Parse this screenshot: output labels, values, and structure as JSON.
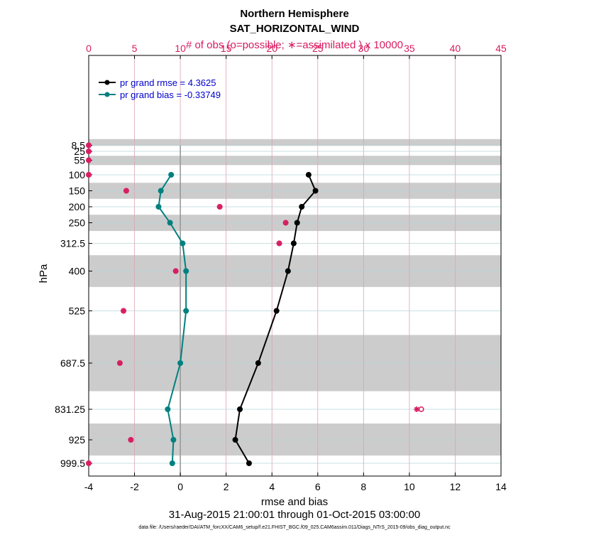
{
  "chart_data": {
    "type": "line",
    "title": "Northern Hemisphere",
    "subtitle": "SAT_HORIZONTAL_WIND",
    "top_axis_label": "# of obs (o=possible; ∗=assimilated ) x 10000",
    "xlabel": "rmse and bias",
    "ylabel": "hPa",
    "date_range": "31-Aug-2015 21:00:01 through 01-Oct-2015 03:00:00",
    "footnote": "data file: /Users/raeder/DAI/ATM_forcXX/CAM6_setup/f.e21.FHIST_BGC.f09_025.CAM6assim.011/Diags_NTrS_2015-09/obs_diag_output.nc",
    "xlim": [
      -4,
      14
    ],
    "xticks": [
      -4,
      -2,
      0,
      2,
      4,
      6,
      8,
      10,
      12,
      14
    ],
    "top_xlim": [
      0,
      45
    ],
    "top_xticks": [
      0,
      5,
      10,
      15,
      20,
      25,
      30,
      35,
      40,
      45
    ],
    "y_levels": [
      8.5,
      25,
      55,
      100,
      150,
      200,
      250,
      312.5,
      400,
      525,
      687.5,
      831.25,
      925,
      999.5
    ],
    "y_labels": [
      "8.5",
      "25",
      "55",
      "100",
      "150",
      "200",
      "250",
      "312.5",
      "400",
      "525",
      "687.5",
      "831.25",
      "925",
      "999.5"
    ],
    "shaded_bands": [
      [
        5,
        10
      ],
      [
        40,
        70
      ],
      [
        125,
        175
      ],
      [
        225,
        275
      ],
      [
        350,
        450
      ],
      [
        600,
        775
      ],
      [
        875,
        975
      ]
    ],
    "grid": true,
    "legend_position": "top-left",
    "series": [
      {
        "name": "pr grand rmse = 4.3625",
        "color": "#000000",
        "levels": [
          100,
          150,
          200,
          250,
          312.5,
          400,
          525,
          687.5,
          831.25,
          925,
          999.5
        ],
        "values": [
          5.6,
          5.9,
          5.3,
          5.1,
          4.95,
          4.7,
          4.2,
          3.4,
          2.6,
          2.4,
          3.0
        ]
      },
      {
        "name": "pr grand bias = -0.33749",
        "color": "#008080",
        "levels": [
          100,
          150,
          200,
          250,
          312.5,
          400,
          525,
          687.5,
          831.25,
          925,
          999.5
        ],
        "values": [
          -0.4,
          -0.85,
          -0.95,
          -0.45,
          0.1,
          0.25,
          0.25,
          0.0,
          -0.55,
          -0.3,
          -0.35
        ]
      }
    ],
    "obs_counts": {
      "color": "#d81b60",
      "levels": [
        8.5,
        25,
        55,
        100,
        150,
        200,
        250,
        312.5,
        400,
        525,
        687.5,
        831.25,
        925,
        999.5
      ],
      "possible": [
        0,
        0,
        0,
        0,
        4.1,
        14.3,
        21.5,
        20.8,
        9.5,
        3.8,
        3.4,
        36.3,
        4.6,
        0
      ],
      "assimilated": [
        0,
        0,
        0,
        0,
        4.1,
        14.3,
        21.5,
        20.8,
        9.5,
        3.8,
        3.4,
        35.8,
        4.6,
        0
      ]
    }
  }
}
